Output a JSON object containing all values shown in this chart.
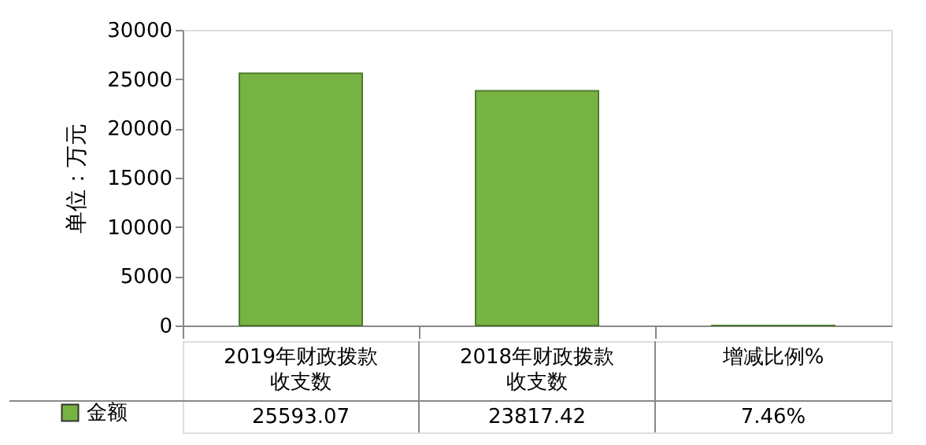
{
  "chart_data": {
    "type": "bar",
    "ylabel": "单位：万元",
    "categories": [
      "2019年财政拨款收支数",
      "2018年财政拨款收支数",
      "增减比例%"
    ],
    "series": [
      {
        "name": "金额",
        "color": "#77b343",
        "values": [
          25593.07,
          23817.42,
          7.46
        ],
        "value_labels": [
          "25593.07",
          "23817.42",
          "7.46%"
        ]
      }
    ],
    "ylim": [
      0,
      30000
    ],
    "yticks": [
      0,
      5000,
      10000,
      15000,
      20000,
      25000,
      30000
    ],
    "grid": false,
    "legend": "bottom left"
  }
}
